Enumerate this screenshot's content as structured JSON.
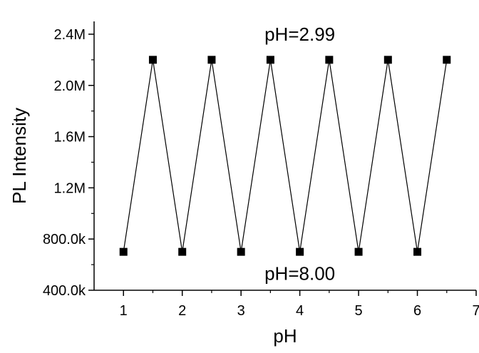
{
  "chart_data": {
    "type": "line",
    "xlabel": "pH",
    "ylabel": "PL Intensity",
    "xlim": [
      0.5,
      7
    ],
    "ylim": [
      400000,
      2500000
    ],
    "x_ticks": [
      1,
      2,
      3,
      4,
      5,
      6,
      7
    ],
    "x_tick_labels": [
      "1",
      "2",
      "3",
      "4",
      "5",
      "6",
      "7"
    ],
    "y_ticks": [
      400000,
      800000,
      1200000,
      1600000,
      2000000,
      2400000
    ],
    "y_tick_labels": [
      "400.0k",
      "800.0k",
      "1.2M",
      "1.6M",
      "2.0M",
      "2.4M"
    ],
    "grid": false,
    "marker": "square",
    "color": "#000000",
    "series": [
      {
        "x": [
          1,
          1.5,
          2,
          2.5,
          3,
          3.5,
          4,
          4.5,
          5,
          5.5,
          6,
          6.5
        ],
        "y": [
          700000,
          2200000,
          700000,
          2200000,
          700000,
          2200000,
          700000,
          2200000,
          700000,
          2200000,
          700000,
          2200000
        ]
      }
    ],
    "annotations": [
      {
        "text": "pH=2.99",
        "x": 4.0,
        "y": 2400000
      },
      {
        "text": "pH=8.00",
        "x": 4.0,
        "y": 530000
      }
    ]
  }
}
